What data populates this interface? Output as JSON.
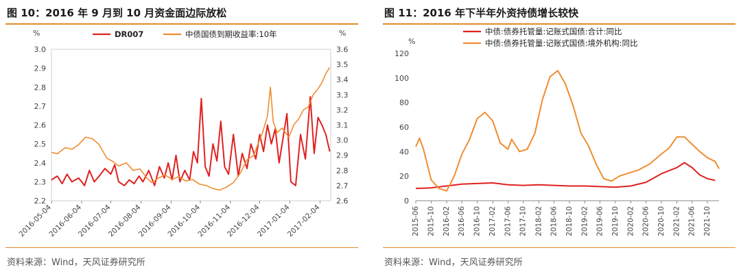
{
  "left": {
    "title": "图 10：2016 年 9 月到 10 月资金面边际放松",
    "source": "资料来源：Wind，天风证券研究所",
    "chart_data": {
      "type": "line",
      "left_axis_unit": "%",
      "right_axis_unit": "%",
      "ylim_left": [
        2.2,
        3.0
      ],
      "ylim_right": [
        2.6,
        3.6
      ],
      "yticks_left": [
        "2.2",
        "2.3",
        "2.4",
        "2.5",
        "2.6",
        "2.7",
        "2.8",
        "2.9",
        "3.0"
      ],
      "yticks_right": [
        "2.6",
        "2.7",
        "2.8",
        "2.9",
        "3.0",
        "3.1",
        "3.2",
        "3.3",
        "3.4",
        "3.5",
        "3.6"
      ],
      "xticks": [
        "2016-05-04",
        "2016-06-04",
        "2016-07-04",
        "2016-08-04",
        "2016-09-04",
        "2016-10-04",
        "2016-11-04",
        "2016-12-04",
        "2017-01-04",
        "2017-02-04"
      ],
      "legend_position": "top",
      "series": [
        {
          "name": "DR007",
          "axis": "left",
          "color": "#e02020",
          "points": [
            [
              "2016-05-04",
              2.31
            ],
            [
              "2016-05-10",
              2.33
            ],
            [
              "2016-05-15",
              2.29
            ],
            [
              "2016-05-20",
              2.34
            ],
            [
              "2016-05-25",
              2.3
            ],
            [
              "2016-06-01",
              2.32
            ],
            [
              "2016-06-07",
              2.28
            ],
            [
              "2016-06-12",
              2.36
            ],
            [
              "2016-06-17",
              2.3
            ],
            [
              "2016-06-22",
              2.33
            ],
            [
              "2016-06-28",
              2.37
            ],
            [
              "2016-07-04",
              2.34
            ],
            [
              "2016-07-08",
              2.39
            ],
            [
              "2016-07-12",
              2.3
            ],
            [
              "2016-07-18",
              2.28
            ],
            [
              "2016-07-23",
              2.31
            ],
            [
              "2016-07-28",
              2.29
            ],
            [
              "2016-08-02",
              2.33
            ],
            [
              "2016-08-06",
              2.3
            ],
            [
              "2016-08-12",
              2.36
            ],
            [
              "2016-08-18",
              2.28
            ],
            [
              "2016-08-23",
              2.38
            ],
            [
              "2016-08-28",
              2.32
            ],
            [
              "2016-09-01",
              2.4
            ],
            [
              "2016-09-05",
              2.31
            ],
            [
              "2016-09-09",
              2.44
            ],
            [
              "2016-09-13",
              2.3
            ],
            [
              "2016-09-18",
              2.36
            ],
            [
              "2016-09-23",
              2.31
            ],
            [
              "2016-09-27",
              2.46
            ],
            [
              "2016-10-01",
              2.4
            ],
            [
              "2016-10-05",
              2.74
            ],
            [
              "2016-10-09",
              2.38
            ],
            [
              "2016-10-13",
              2.33
            ],
            [
              "2016-10-17",
              2.5
            ],
            [
              "2016-10-21",
              2.41
            ],
            [
              "2016-10-25",
              2.62
            ],
            [
              "2016-10-29",
              2.38
            ],
            [
              "2016-11-02",
              2.34
            ],
            [
              "2016-11-07",
              2.55
            ],
            [
              "2016-11-12",
              2.33
            ],
            [
              "2016-11-16",
              2.45
            ],
            [
              "2016-11-21",
              2.37
            ],
            [
              "2016-11-25",
              2.5
            ],
            [
              "2016-11-30",
              2.42
            ],
            [
              "2016-12-04",
              2.55
            ],
            [
              "2016-12-08",
              2.46
            ],
            [
              "2016-12-12",
              2.6
            ],
            [
              "2016-12-16",
              2.5
            ],
            [
              "2016-12-20",
              2.58
            ],
            [
              "2016-12-24",
              2.4
            ],
            [
              "2016-12-28",
              2.53
            ],
            [
              "2017-01-01",
              2.66
            ],
            [
              "2017-01-05",
              2.3
            ],
            [
              "2017-01-10",
              2.28
            ],
            [
              "2017-01-15",
              2.55
            ],
            [
              "2017-01-20",
              2.42
            ],
            [
              "2017-01-25",
              2.75
            ],
            [
              "2017-01-29",
              2.45
            ],
            [
              "2017-02-02",
              2.64
            ],
            [
              "2017-02-06",
              2.6
            ],
            [
              "2017-02-10",
              2.55
            ],
            [
              "2017-02-14",
              2.46
            ]
          ]
        },
        {
          "name": "中债国债到期收益率:10年",
          "axis": "right",
          "color": "#f08c30",
          "points": [
            [
              "2016-05-04",
              2.92
            ],
            [
              "2016-05-10",
              2.91
            ],
            [
              "2016-05-18",
              2.95
            ],
            [
              "2016-05-25",
              2.94
            ],
            [
              "2016-06-01",
              2.97
            ],
            [
              "2016-06-08",
              3.02
            ],
            [
              "2016-06-15",
              3.01
            ],
            [
              "2016-06-22",
              2.97
            ],
            [
              "2016-06-30",
              2.88
            ],
            [
              "2016-07-06",
              2.86
            ],
            [
              "2016-07-12",
              2.83
            ],
            [
              "2016-07-20",
              2.85
            ],
            [
              "2016-07-27",
              2.8
            ],
            [
              "2016-08-03",
              2.81
            ],
            [
              "2016-08-10",
              2.75
            ],
            [
              "2016-08-15",
              2.72
            ],
            [
              "2016-08-22",
              2.75
            ],
            [
              "2016-08-29",
              2.77
            ],
            [
              "2016-09-05",
              2.74
            ],
            [
              "2016-09-12",
              2.76
            ],
            [
              "2016-09-19",
              2.73
            ],
            [
              "2016-09-26",
              2.74
            ],
            [
              "2016-10-03",
              2.71
            ],
            [
              "2016-10-10",
              2.7
            ],
            [
              "2016-10-17",
              2.68
            ],
            [
              "2016-10-24",
              2.67
            ],
            [
              "2016-10-31",
              2.69
            ],
            [
              "2016-11-07",
              2.72
            ],
            [
              "2016-11-14",
              2.78
            ],
            [
              "2016-11-21",
              2.87
            ],
            [
              "2016-11-28",
              2.9
            ],
            [
              "2016-12-02",
              2.97
            ],
            [
              "2016-12-07",
              3.05
            ],
            [
              "2016-12-12",
              3.16
            ],
            [
              "2016-12-15",
              3.35
            ],
            [
              "2016-12-18",
              3.12
            ],
            [
              "2016-12-22",
              3.05
            ],
            [
              "2016-12-27",
              3.08
            ],
            [
              "2017-01-03",
              3.02
            ],
            [
              "2017-01-08",
              3.1
            ],
            [
              "2017-01-13",
              3.14
            ],
            [
              "2017-01-18",
              3.2
            ],
            [
              "2017-01-23",
              3.22
            ],
            [
              "2017-01-28",
              3.3
            ],
            [
              "2017-02-02",
              3.34
            ],
            [
              "2017-02-06",
              3.38
            ],
            [
              "2017-02-10",
              3.44
            ],
            [
              "2017-02-14",
              3.48
            ]
          ]
        }
      ]
    }
  },
  "right": {
    "title": "图 11：2016 年下半年外资持债增长较快",
    "source": "资料来源：Wind，天风证券研究所",
    "chart_data": {
      "type": "line",
      "y_unit": "%",
      "ylim": [
        0,
        120
      ],
      "yticks": [
        "0",
        "20",
        "40",
        "60",
        "80",
        "100",
        "120"
      ],
      "xticks": [
        "2015-06",
        "2015-10",
        "2016-02",
        "2016-06",
        "2016-10",
        "2017-02",
        "2017-06",
        "2017-10",
        "2018-02",
        "2018-06",
        "2018-10",
        "2019-02",
        "2019-06",
        "2019-10",
        "2020-02",
        "2020-06",
        "2020-10",
        "2021-02",
        "2021-06",
        "2021-10"
      ],
      "legend_position": "top",
      "series": [
        {
          "name": "中债:债券托管量:记账式国债:合计:同比",
          "color": "#e02020",
          "points": [
            [
              "2015-06",
              10
            ],
            [
              "2015-10",
              10.5
            ],
            [
              "2016-02",
              12
            ],
            [
              "2016-06",
              13.5
            ],
            [
              "2016-10",
              14
            ],
            [
              "2017-02",
              14.5
            ],
            [
              "2017-06",
              13
            ],
            [
              "2017-10",
              12.5
            ],
            [
              "2018-02",
              13
            ],
            [
              "2018-06",
              12.5
            ],
            [
              "2018-10",
              12
            ],
            [
              "2019-02",
              12
            ],
            [
              "2019-06",
              11.5
            ],
            [
              "2019-10",
              11
            ],
            [
              "2020-02",
              12
            ],
            [
              "2020-06",
              15
            ],
            [
              "2020-10",
              22
            ],
            [
              "2021-02",
              27
            ],
            [
              "2021-04",
              31
            ],
            [
              "2021-06",
              27
            ],
            [
              "2021-08",
              21
            ],
            [
              "2021-10",
              18
            ],
            [
              "2021-12",
              16.5
            ]
          ]
        },
        {
          "name": "中债:债券托管量:记账式国债:境外机构:同比",
          "color": "#f08c30",
          "points": [
            [
              "2015-06",
              44
            ],
            [
              "2015-07",
              51
            ],
            [
              "2015-08",
              42
            ],
            [
              "2015-10",
              17
            ],
            [
              "2015-12",
              10
            ],
            [
              "2016-02",
              8
            ],
            [
              "2016-04",
              20
            ],
            [
              "2016-06",
              38
            ],
            [
              "2016-08",
              50
            ],
            [
              "2016-10",
              67
            ],
            [
              "2016-12",
              72
            ],
            [
              "2017-02",
              65
            ],
            [
              "2017-04",
              47
            ],
            [
              "2017-06",
              42
            ],
            [
              "2017-07",
              50
            ],
            [
              "2017-09",
              40
            ],
            [
              "2017-11",
              42
            ],
            [
              "2018-01",
              55
            ],
            [
              "2018-03",
              82
            ],
            [
              "2018-05",
              101
            ],
            [
              "2018-07",
              106
            ],
            [
              "2018-09",
              95
            ],
            [
              "2018-11",
              77
            ],
            [
              "2019-01",
              55
            ],
            [
              "2019-03",
              45
            ],
            [
              "2019-05",
              30
            ],
            [
              "2019-07",
              18
            ],
            [
              "2019-09",
              16
            ],
            [
              "2019-11",
              20
            ],
            [
              "2020-01",
              22
            ],
            [
              "2020-04",
              25
            ],
            [
              "2020-07",
              30
            ],
            [
              "2020-10",
              38
            ],
            [
              "2020-12",
              43
            ],
            [
              "2021-02",
              52
            ],
            [
              "2021-04",
              52
            ],
            [
              "2021-06",
              46
            ],
            [
              "2021-08",
              40
            ],
            [
              "2021-10",
              35
            ],
            [
              "2021-12",
              32
            ],
            [
              "2022-01",
              26
            ]
          ]
        }
      ]
    }
  }
}
